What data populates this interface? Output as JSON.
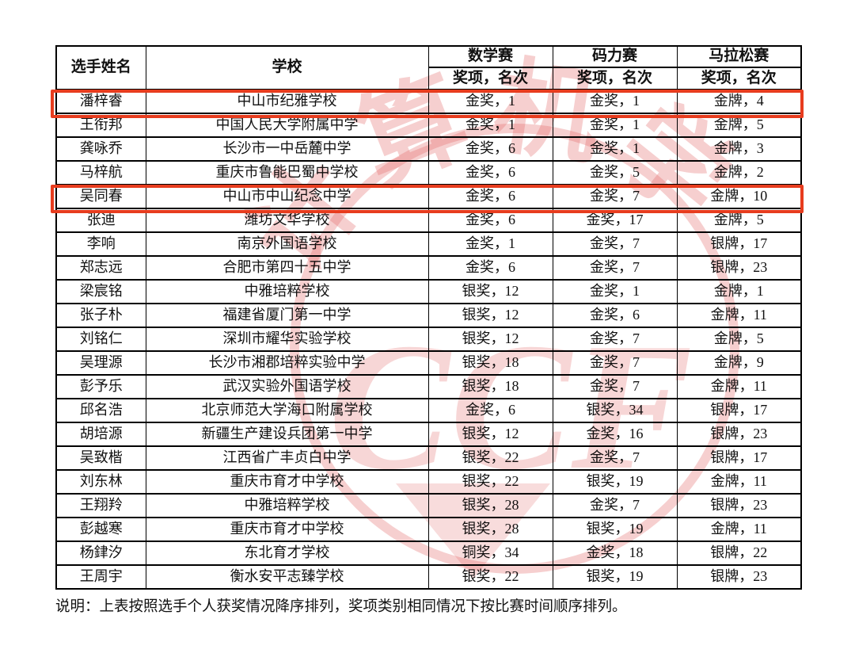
{
  "table": {
    "headers": {
      "name": "选手姓名",
      "school": "学校",
      "contest_math": "数学赛",
      "contest_coding": "码力赛",
      "contest_marathon": "马拉松赛",
      "sub_header": "奖项，名次"
    },
    "rows": [
      {
        "name": "潘梓睿",
        "school": "中山市纪雅学校",
        "math": "金奖，1",
        "coding": "金奖，1",
        "marathon": "金牌，4",
        "highlighted": true
      },
      {
        "name": "王衔邦",
        "school": "中国人民大学附属中学",
        "math": "金奖，1",
        "coding": "金奖，1",
        "marathon": "金牌，5",
        "highlighted": false
      },
      {
        "name": "龚咏乔",
        "school": "长沙市一中岳麓中学",
        "math": "金奖，6",
        "coding": "金奖，1",
        "marathon": "金牌，3",
        "highlighted": false
      },
      {
        "name": "马梓航",
        "school": "重庆市鲁能巴蜀中学校",
        "math": "金奖，6",
        "coding": "金奖，5",
        "marathon": "金牌，2",
        "highlighted": false
      },
      {
        "name": "吴同春",
        "school": "中山市中山纪念中学",
        "math": "金奖，6",
        "coding": "金奖，7",
        "marathon": "金牌，10",
        "highlighted": true
      },
      {
        "name": "张迪",
        "school": "潍坊文华学校",
        "math": "金奖，6",
        "coding": "金奖，17",
        "marathon": "金牌，5",
        "highlighted": false
      },
      {
        "name": "李响",
        "school": "南京外国语学校",
        "math": "金奖，1",
        "coding": "金奖，7",
        "marathon": "银牌，17",
        "highlighted": false
      },
      {
        "name": "郑志远",
        "school": "合肥市第四十五中学",
        "math": "金奖，6",
        "coding": "金奖，7",
        "marathon": "银牌，23",
        "highlighted": false
      },
      {
        "name": "梁宸铭",
        "school": "中雅培粹学校",
        "math": "银奖，12",
        "coding": "金奖，1",
        "marathon": "金牌，1",
        "highlighted": false
      },
      {
        "name": "张子朴",
        "school": "福建省厦门第一中学",
        "math": "银奖，12",
        "coding": "金奖，6",
        "marathon": "金牌，11",
        "highlighted": false
      },
      {
        "name": "刘铭仁",
        "school": "深圳市耀华实验学校",
        "math": "银奖，12",
        "coding": "金奖，7",
        "marathon": "金牌，5",
        "highlighted": false
      },
      {
        "name": "吴理源",
        "school": "长沙市湘郡培粹实验中学",
        "math": "银奖，18",
        "coding": "金奖，7",
        "marathon": "金牌，9",
        "highlighted": false
      },
      {
        "name": "彭予乐",
        "school": "武汉实验外国语学校",
        "math": "银奖，18",
        "coding": "金奖，7",
        "marathon": "金牌，11",
        "highlighted": false
      },
      {
        "name": "邱名浩",
        "school": "北京师范大学海口附属学校",
        "math": "金奖，6",
        "coding": "银奖，34",
        "marathon": "银牌，17",
        "highlighted": false
      },
      {
        "name": "胡培源",
        "school": "新疆生产建设兵团第一中学",
        "math": "银奖，12",
        "coding": "金奖，16",
        "marathon": "银牌，23",
        "highlighted": false
      },
      {
        "name": "吴致楷",
        "school": "江西省广丰贞白中学",
        "math": "银奖，22",
        "coding": "金奖，7",
        "marathon": "银牌，17",
        "highlighted": false
      },
      {
        "name": "刘东林",
        "school": "重庆市育才中学校",
        "math": "银奖，22",
        "coding": "银奖，19",
        "marathon": "金牌，11",
        "highlighted": false
      },
      {
        "name": "王翔羚",
        "school": "中雅培粹学校",
        "math": "银奖，28",
        "coding": "金奖，7",
        "marathon": "银牌，23",
        "highlighted": false
      },
      {
        "name": "彭越寒",
        "school": "重庆市育才中学校",
        "math": "银奖，28",
        "coding": "银奖，19",
        "marathon": "金牌，11",
        "highlighted": false
      },
      {
        "name": "杨銉汐",
        "school": "东北育才学校",
        "math": "铜奖，34",
        "coding": "金奖，18",
        "marathon": "银牌，22",
        "highlighted": false
      },
      {
        "name": "王周宇",
        "school": "衡水安平志臻学校",
        "math": "银奖，22",
        "coding": "银奖，19",
        "marathon": "银牌，23",
        "highlighted": false
      }
    ]
  },
  "note": "说明：上表按照选手个人获奖情况降序排列，奖项类别相同情况下按比赛时间顺序排列。",
  "watermark": {
    "arc_text": "计算机学",
    "center_text": "CCF"
  },
  "colors": {
    "highlight_red": "#e73c1e",
    "watermark_pink": "#e06060",
    "border_black": "#000000"
  }
}
